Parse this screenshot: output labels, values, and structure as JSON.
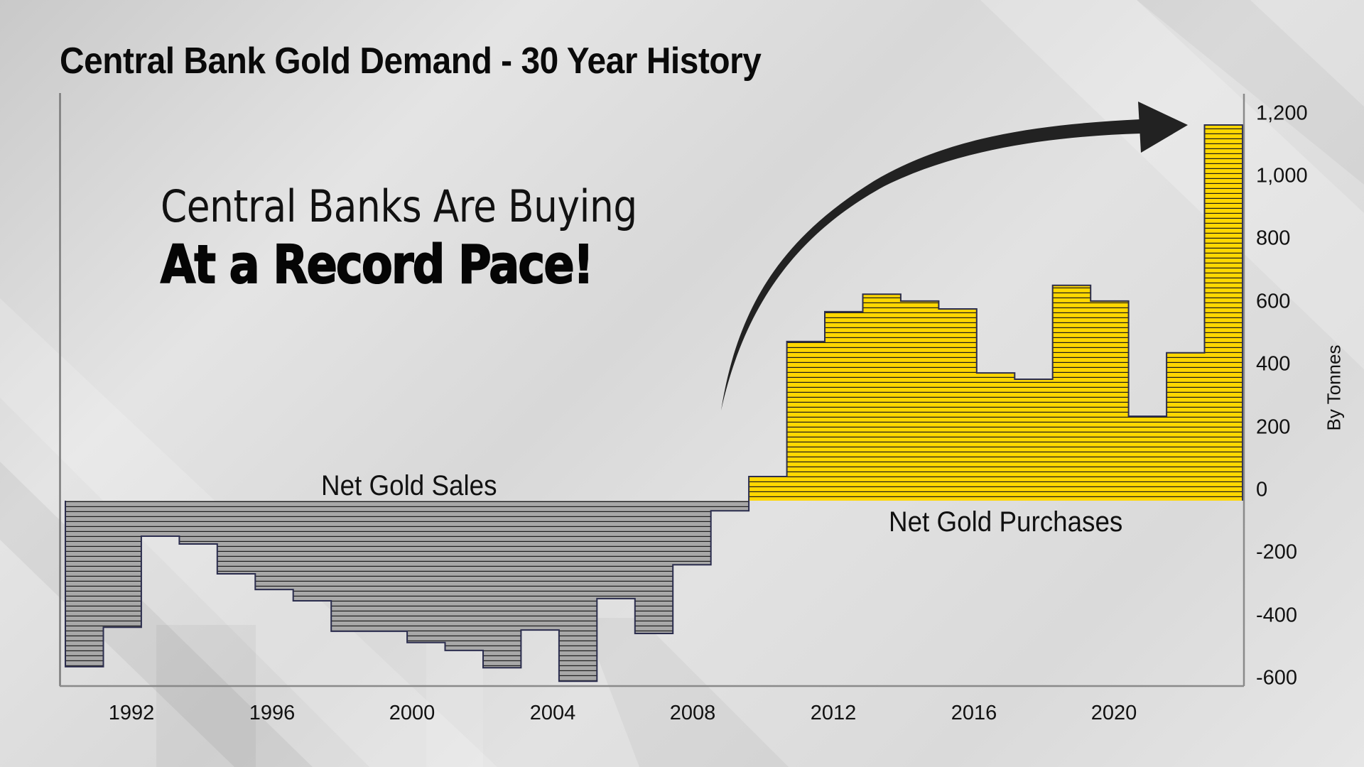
{
  "title": "Central Bank Gold Demand - 30 Year History",
  "headline": {
    "line1": "Central Banks Are Buying",
    "line2": "At a Record Pace!"
  },
  "annotations": {
    "sales_label": "Net Gold Sales",
    "purchases_label": "Net Gold Purchases"
  },
  "axis": {
    "y_title": "By Tonnes",
    "y_ticks": [
      "1,200",
      "1,000",
      "800",
      "600",
      "400",
      "200",
      "0",
      "-200",
      "-400",
      "-600"
    ],
    "x_ticks": [
      "1992",
      "1996",
      "2000",
      "2004",
      "2008",
      "2012",
      "2016",
      "2020"
    ]
  },
  "colors": {
    "purchase_fill": "#FFD700",
    "sales_fill": "#A8A8A8",
    "bar_outline": "#2B2D4E",
    "arrow": "#222222",
    "text": "#111111"
  },
  "chart_data": {
    "type": "bar",
    "title": "Central Bank Gold Demand - 30 Year History",
    "subtitle": "Central Banks Are Buying At a Record Pace!",
    "xlabel": "",
    "ylabel": "By Tonnes",
    "ylim": [
      -600,
      1200
    ],
    "y_ticks": [
      1200,
      1000,
      800,
      600,
      400,
      200,
      0,
      -200,
      -400,
      -600
    ],
    "grid": false,
    "legend": null,
    "annotations": [
      "Net Gold Sales",
      "Net Gold Purchases",
      "Upward curved arrow pointing to 2022 bar"
    ],
    "categories": [
      "1992",
      "1993",
      "1994",
      "1995",
      "1996",
      "1997",
      "1998",
      "1999",
      "2000",
      "2001",
      "2002",
      "2003",
      "2004",
      "2005",
      "2006",
      "2007",
      "2008",
      "2009",
      "2010",
      "2011",
      "2012",
      "2013",
      "2014",
      "2015",
      "2016",
      "2017",
      "2018",
      "2019",
      "2020",
      "2021",
      "2022"
    ],
    "values": [
      -563,
      -437,
      -147,
      -172,
      -267,
      -317,
      -353,
      -450,
      -450,
      -486,
      -511,
      -566,
      -446,
      -609,
      -346,
      -457,
      -238,
      -66,
      43,
      473,
      568,
      624,
      602,
      577,
      373,
      353,
      652,
      602,
      235,
      437,
      1163
    ],
    "series": [
      {
        "name": "Net Gold Sales",
        "color": "#A8A8A8",
        "years": [
          "1992",
          "1993",
          "1994",
          "1995",
          "1996",
          "1997",
          "1998",
          "1999",
          "2000",
          "2001",
          "2002",
          "2003",
          "2004",
          "2005",
          "2006",
          "2007",
          "2008",
          "2009"
        ],
        "values": [
          -563,
          -437,
          -147,
          -172,
          -267,
          -317,
          -353,
          -450,
          -450,
          -486,
          -511,
          -566,
          -446,
          -609,
          -346,
          -457,
          -238,
          -66
        ]
      },
      {
        "name": "Net Gold Purchases",
        "color": "#FFD700",
        "years": [
          "2010",
          "2011",
          "2012",
          "2013",
          "2014",
          "2015",
          "2016",
          "2017",
          "2018",
          "2019",
          "2020",
          "2021",
          "2022"
        ],
        "values": [
          43,
          473,
          568,
          624,
          602,
          577,
          373,
          353,
          652,
          602,
          235,
          437,
          1163
        ]
      }
    ]
  }
}
